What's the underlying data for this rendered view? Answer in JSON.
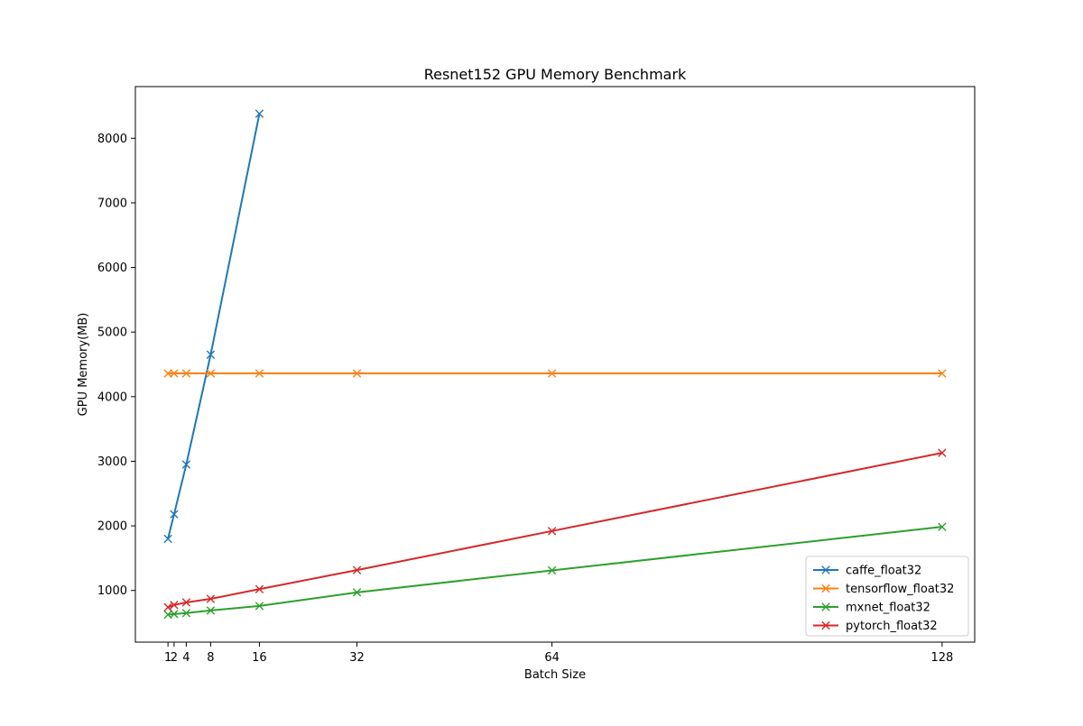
{
  "chart_data": {
    "type": "line",
    "title": "Resnet152 GPU Memory Benchmark",
    "xlabel": "Batch Size",
    "ylabel": "GPU Memory(MB)",
    "xlim": [
      -4.35,
      133.35
    ],
    "ylim": [
      200,
      8800
    ],
    "xticks": [
      1,
      2,
      4,
      8,
      16,
      32,
      64,
      128
    ],
    "yticks": [
      1000,
      2000,
      3000,
      4000,
      5000,
      6000,
      7000,
      8000
    ],
    "grid": false,
    "legend_position": "lower right",
    "marker": "x",
    "series": [
      {
        "name": "caffe_float32",
        "color": "#1f77b4",
        "x": [
          1,
          2,
          4,
          8,
          16
        ],
        "y": [
          1800,
          2180,
          2950,
          4650,
          8380
        ]
      },
      {
        "name": "tensorflow_float32",
        "color": "#ff7f0e",
        "x": [
          1,
          2,
          4,
          8,
          16,
          32,
          64,
          128
        ],
        "y": [
          4360,
          4360,
          4360,
          4360,
          4360,
          4360,
          4360,
          4360
        ]
      },
      {
        "name": "mxnet_float32",
        "color": "#2ca02c",
        "x": [
          1,
          2,
          4,
          8,
          16,
          32,
          64,
          128
        ],
        "y": [
          625,
          635,
          650,
          690,
          760,
          970,
          1310,
          1985
        ]
      },
      {
        "name": "pytorch_float32",
        "color": "#d62728",
        "x": [
          1,
          2,
          4,
          8,
          16,
          32,
          64,
          128
        ],
        "y": [
          740,
          775,
          815,
          870,
          1020,
          1315,
          1920,
          3130
        ]
      }
    ]
  }
}
